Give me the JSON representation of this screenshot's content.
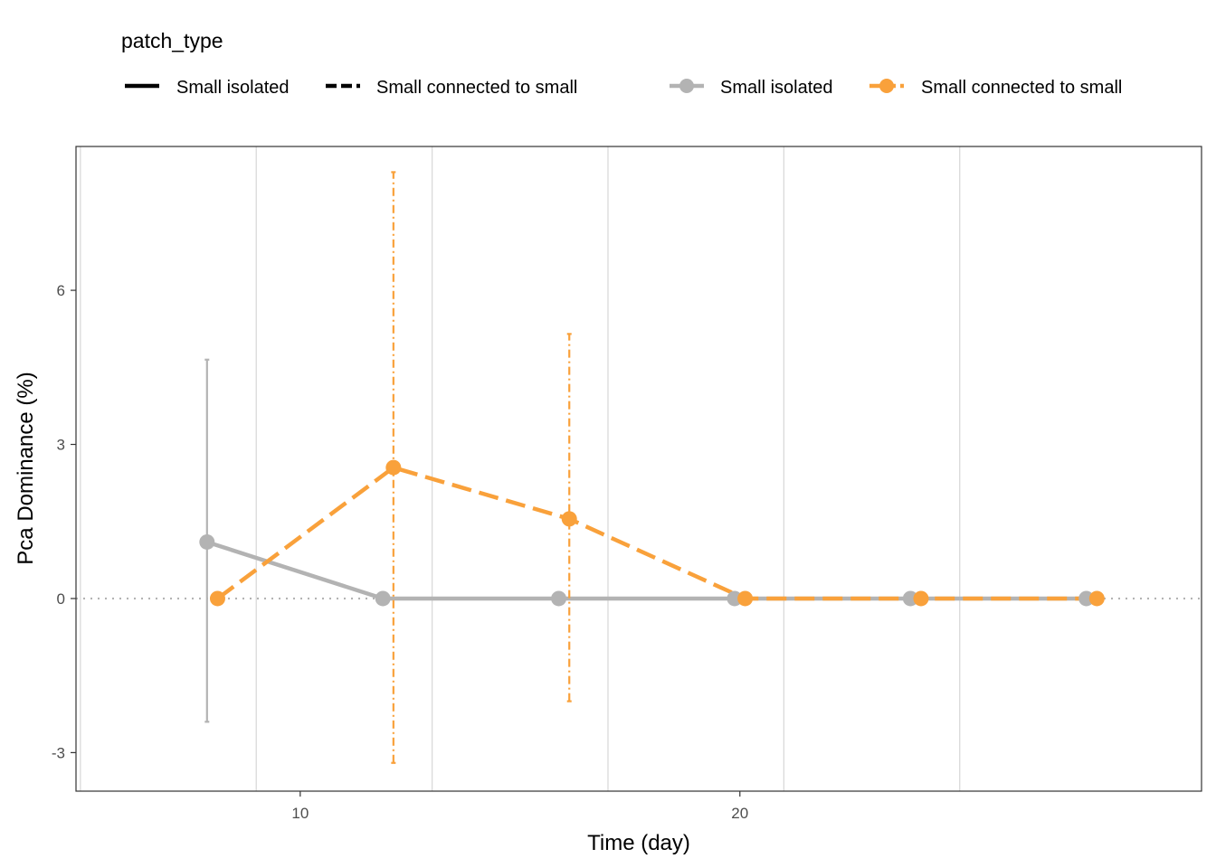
{
  "chart_data": {
    "type": "line",
    "xlabel": "Time (day)",
    "ylabel": "Pca Dominance (%)",
    "xlim": [
      4.9,
      30.5
    ],
    "ylim": [
      -3.75,
      8.8
    ],
    "x_ticks": [
      10,
      20
    ],
    "y_ticks": [
      -3,
      0,
      3,
      6
    ],
    "grid_x_minor": [
      5,
      9,
      13,
      17,
      21,
      25
    ],
    "reference_line": {
      "y": 0,
      "style": "dotted",
      "color": "#b3b3b3"
    },
    "legend": {
      "title": "patch_type",
      "placement": "top-left",
      "linetype_entries": [
        {
          "label": "Small isolated",
          "style": "solid"
        },
        {
          "label": "Small connected to small",
          "style": "dashed"
        }
      ],
      "color_entries": [
        {
          "label": "Small isolated",
          "color": "#b3b3b3"
        },
        {
          "label": "Small connected to small",
          "color": "#f9a13b"
        }
      ]
    },
    "series": [
      {
        "name": "Small isolated",
        "color": "#b3b3b3",
        "line_style": "solid",
        "errorbar_style": "solid",
        "x": [
          7.88,
          11.88,
          15.88,
          19.88,
          23.88,
          27.88
        ],
        "y": [
          1.1,
          0,
          0,
          0,
          0,
          0
        ],
        "ymin": [
          -2.4,
          null,
          null,
          null,
          null,
          null
        ],
        "ymax": [
          4.65,
          null,
          null,
          null,
          null,
          null
        ]
      },
      {
        "name": "Small connected to small",
        "color": "#f9a13b",
        "line_style": "dashed",
        "errorbar_style": "dashdot",
        "x": [
          8.12,
          12.12,
          16.12,
          20.12,
          24.12,
          28.12
        ],
        "y": [
          0,
          2.55,
          1.55,
          0,
          0,
          0
        ],
        "ymin": [
          null,
          -3.2,
          -2.0,
          null,
          null,
          null
        ],
        "ymax": [
          null,
          8.3,
          5.15,
          null,
          null,
          null
        ]
      }
    ]
  }
}
